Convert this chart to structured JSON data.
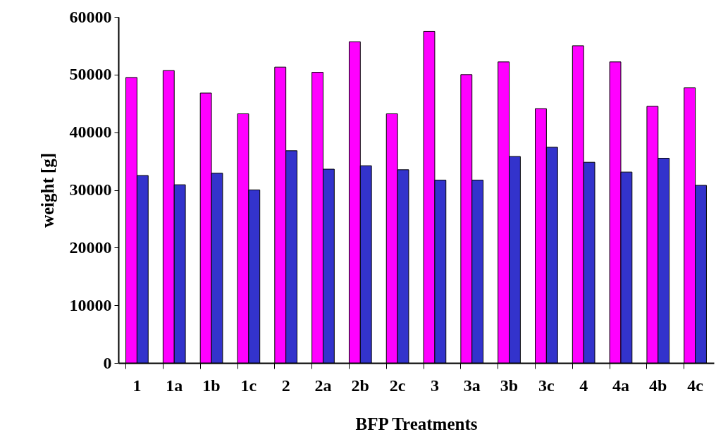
{
  "chart_data": {
    "type": "bar",
    "xlabel": "BFP Treatments",
    "ylabel": "weight [g]",
    "categories": [
      "1",
      "1a",
      "1b",
      "1c",
      "2",
      "2a",
      "2b",
      "2c",
      "3",
      "3a",
      "3b",
      "3c",
      "4",
      "4a",
      "4b",
      "4c"
    ],
    "series": [
      {
        "color": "#ff00ff",
        "values": [
          49500,
          50700,
          46800,
          43200,
          51300,
          50400,
          55700,
          43200,
          57500,
          50000,
          52200,
          44100,
          55000,
          52200,
          44500,
          47700
        ]
      },
      {
        "color": "#3333cc",
        "values": [
          32500,
          30900,
          32900,
          30000,
          36800,
          33600,
          34200,
          33500,
          31700,
          31700,
          35800,
          37400,
          34800,
          33100,
          35500,
          30800
        ]
      }
    ],
    "ylim": [
      0,
      60000
    ],
    "yticks": [
      0,
      10000,
      20000,
      30000,
      40000,
      50000,
      60000
    ],
    "grid": false,
    "legend": false
  }
}
